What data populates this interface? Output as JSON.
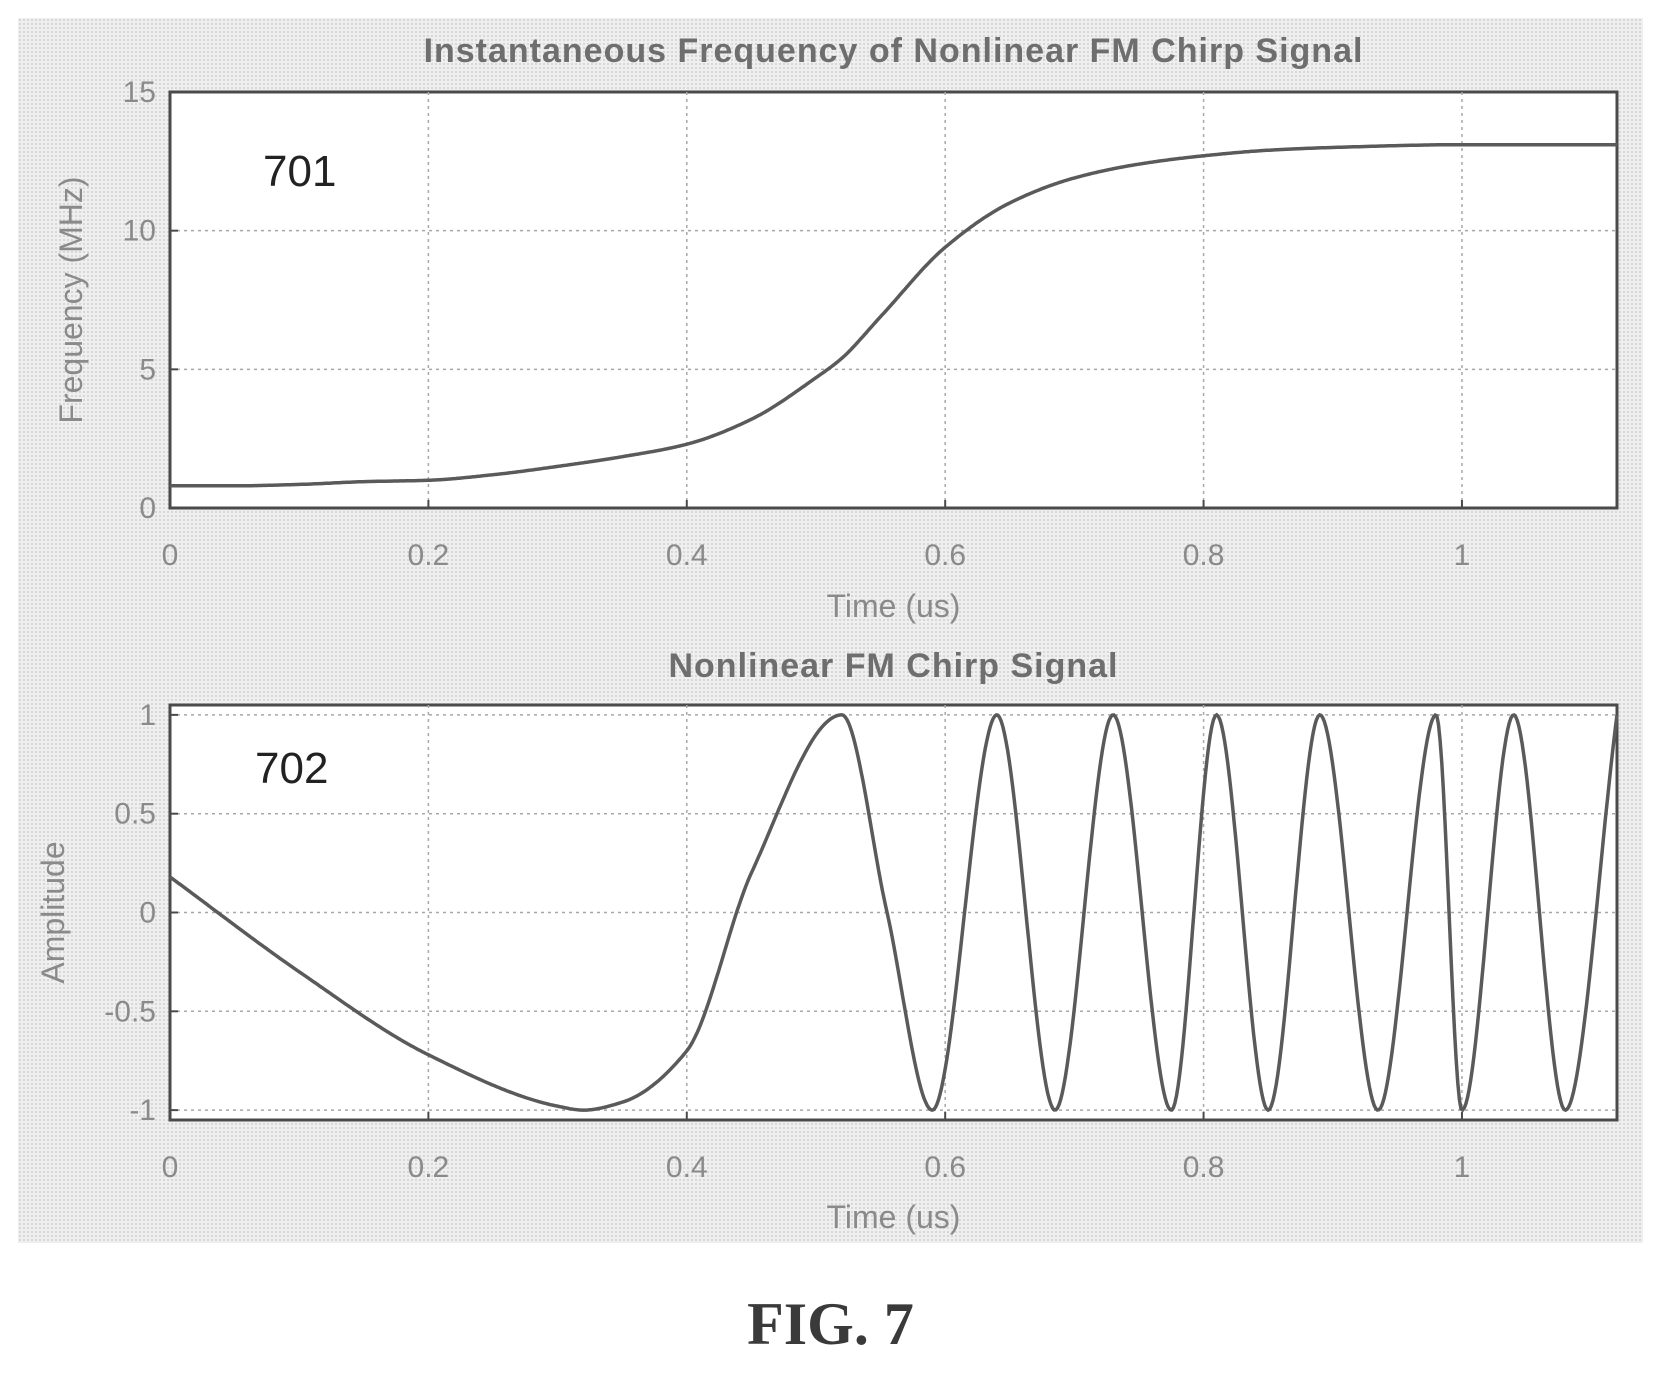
{
  "figure_label": "FIG. 7",
  "chart_data": [
    {
      "type": "line",
      "title": "Instantaneous Frequency of Nonlinear FM Chirp Signal",
      "xlabel": "Time (us)",
      "ylabel": "Frequency (MHz)",
      "xlim": [
        0,
        1.12
      ],
      "ylim": [
        0,
        15
      ],
      "xticks": [
        0,
        0.2,
        0.4,
        0.6,
        0.8,
        1
      ],
      "xtick_labels": [
        "0",
        "0.2",
        "0.4",
        "0.6",
        "0.8",
        "1"
      ],
      "yticks": [
        0,
        5,
        10,
        15
      ],
      "ytick_labels": [
        "0",
        "5",
        "10",
        "15"
      ],
      "grid": true,
      "annotation": "701",
      "colors": {
        "line": "#5a5a5a"
      },
      "series": [
        {
          "x": [
            0,
            0.05,
            0.1,
            0.15,
            0.2,
            0.25,
            0.3,
            0.35,
            0.4,
            0.45,
            0.5,
            0.52,
            0.55,
            0.6,
            0.65,
            0.7,
            0.75,
            0.8,
            0.85,
            0.9,
            1.0,
            1.12
          ],
          "values": [
            0.8,
            0.8,
            0.85,
            0.95,
            1.0,
            1.2,
            1.5,
            1.85,
            2.3,
            3.2,
            4.7,
            5.4,
            6.9,
            9.4,
            11.0,
            11.9,
            12.4,
            12.7,
            12.9,
            13.0,
            13.1,
            13.1
          ]
        }
      ]
    },
    {
      "type": "line",
      "title": "Nonlinear FM Chirp Signal",
      "xlabel": "Time (us)",
      "ylabel": "Amplitude",
      "xlim": [
        0,
        1.12
      ],
      "ylim": [
        -1.05,
        1.05
      ],
      "xticks": [
        0,
        0.2,
        0.4,
        0.6,
        0.8,
        1
      ],
      "xtick_labels": [
        "0",
        "0.2",
        "0.4",
        "0.6",
        "0.8",
        "1"
      ],
      "yticks": [
        -1,
        -0.5,
        0,
        0.5,
        1
      ],
      "ytick_labels": [
        "-1",
        "-0.5",
        "0",
        "0.5",
        "1"
      ],
      "grid": true,
      "annotation": "702",
      "colors": {
        "line": "#5a5a5a"
      },
      "series": [
        {
          "x": [
            0,
            0.1,
            0.2,
            0.3,
            0.32,
            0.35,
            0.4,
            0.45,
            0.52,
            0.555,
            0.59,
            0.64,
            0.685,
            0.73,
            0.775,
            0.81,
            0.85,
            0.89,
            0.935,
            0.98,
            1.0,
            1.04,
            1.08,
            1.12
          ],
          "values": [
            0.18,
            -0.3,
            -0.72,
            -0.98,
            -1.0,
            -0.96,
            -0.7,
            0.2,
            1.0,
            0.0,
            -1.0,
            1.0,
            -1.0,
            1.0,
            -1.0,
            1.0,
            -1.0,
            1.0,
            -1.0,
            1.0,
            -1.0,
            1.0,
            -1.0,
            1.0
          ]
        }
      ]
    }
  ]
}
